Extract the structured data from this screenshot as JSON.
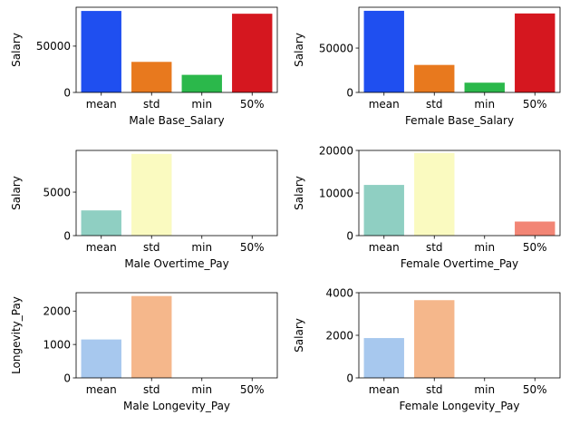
{
  "chart_data": [
    {
      "type": "bar",
      "categories": [
        "mean",
        "std",
        "min",
        "50%"
      ],
      "values": [
        88000,
        33000,
        19000,
        85000
      ],
      "colors": [
        "#1f4ff0",
        "#e8791e",
        "#2bb84b",
        "#d5171f"
      ],
      "xlabel": "Male Base_Salary",
      "ylabel": "Salary",
      "ylim": [
        0,
        92000
      ],
      "yticks": [
        0,
        50000
      ],
      "ytick_labels": [
        "0",
        "50000"
      ]
    },
    {
      "type": "bar",
      "categories": [
        "mean",
        "std",
        "min",
        "50%"
      ],
      "values": [
        92000,
        31000,
        11000,
        89000
      ],
      "colors": [
        "#1f4ff0",
        "#e8791e",
        "#2bb84b",
        "#d5171f"
      ],
      "xlabel": "Female Base_Salary",
      "ylabel": "Salary",
      "ylim": [
        0,
        96000
      ],
      "yticks": [
        0,
        50000
      ],
      "ytick_labels": [
        "0",
        "50000"
      ]
    },
    {
      "type": "bar",
      "categories": [
        "mean",
        "std",
        "min",
        "50%"
      ],
      "values": [
        2900,
        9400,
        0,
        0
      ],
      "colors": [
        "#8fcfc2",
        "#fafac0",
        "#beb9d8",
        "#f28575"
      ],
      "xlabel": "Male Overtime_Pay",
      "ylabel": "Salary",
      "ylim": [
        0,
        9800
      ],
      "yticks": [
        0,
        5000
      ],
      "ytick_labels": [
        "0",
        "5000"
      ]
    },
    {
      "type": "bar",
      "categories": [
        "mean",
        "std",
        "min",
        "50%"
      ],
      "values": [
        11900,
        19400,
        0,
        3300
      ],
      "colors": [
        "#8fcfc2",
        "#fafac0",
        "#beb9d8",
        "#f28575"
      ],
      "xlabel": "Female Overtime_Pay",
      "ylabel": "Salary",
      "ylim": [
        0,
        20000
      ],
      "yticks": [
        0,
        10000,
        20000
      ],
      "ytick_labels": [
        "0",
        "10000",
        "20000"
      ]
    },
    {
      "type": "bar",
      "categories": [
        "mean",
        "std",
        "min",
        "50%"
      ],
      "values": [
        1150,
        2450,
        0,
        0
      ],
      "colors": [
        "#a7c8ee",
        "#f5b78b",
        "#9fd89c",
        "#ef9a9a"
      ],
      "xlabel": "Male Longevity_Pay",
      "ylabel": "Longevity_Pay",
      "ylim": [
        0,
        2550
      ],
      "yticks": [
        0,
        1000,
        2000
      ],
      "ytick_labels": [
        "0",
        "1000",
        "2000"
      ]
    },
    {
      "type": "bar",
      "categories": [
        "mean",
        "std",
        "min",
        "50%"
      ],
      "values": [
        1870,
        3650,
        0,
        0
      ],
      "colors": [
        "#a7c8ee",
        "#f5b78b",
        "#9fd89c",
        "#ef9a9a"
      ],
      "xlabel": "Female Longevity_Pay",
      "ylabel": "Salary",
      "ylim": [
        0,
        4000
      ],
      "yticks": [
        0,
        2000,
        4000
      ],
      "ytick_labels": [
        "0",
        "2000",
        "4000"
      ]
    }
  ]
}
